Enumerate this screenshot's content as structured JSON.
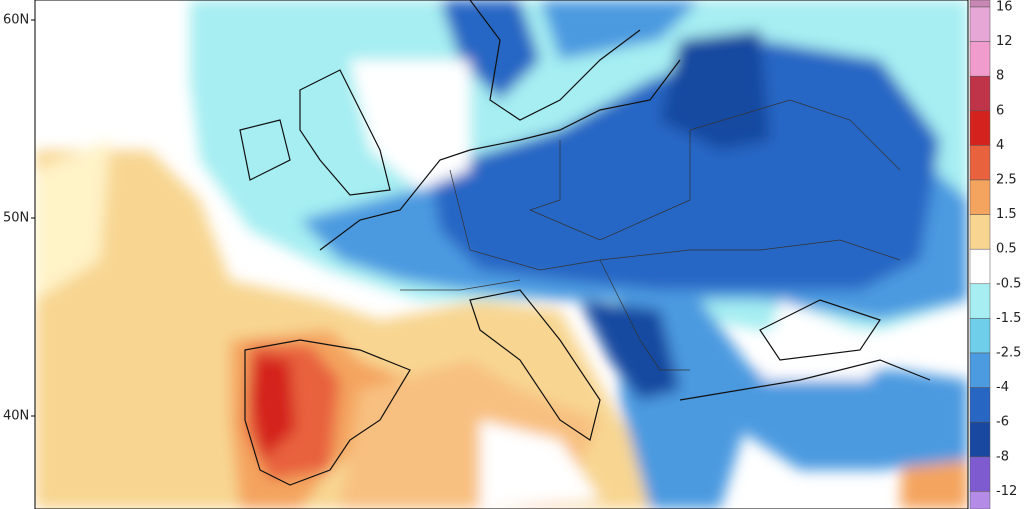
{
  "map": {
    "lat_labels": [
      "60N",
      "50N",
      "40N"
    ]
  },
  "colorbar": {
    "labels": [
      "16",
      "12",
      "8",
      "6",
      "4",
      "2.5",
      "1.5",
      "0.5",
      "-0.5",
      "-1.5",
      "-2.5",
      "-4",
      "-6",
      "-8",
      "-12"
    ],
    "colors": [
      "#c887b4",
      "#e6a6d6",
      "#f09ccc",
      "#c0344a",
      "#d4221e",
      "#e8623e",
      "#f4a45e",
      "#f8d692",
      "#ffffff",
      "#a6eef2",
      "#6fcfea",
      "#4c9ae0",
      "#2866c4",
      "#1848a0",
      "#7e5cd0",
      "#b48ce8"
    ]
  }
}
